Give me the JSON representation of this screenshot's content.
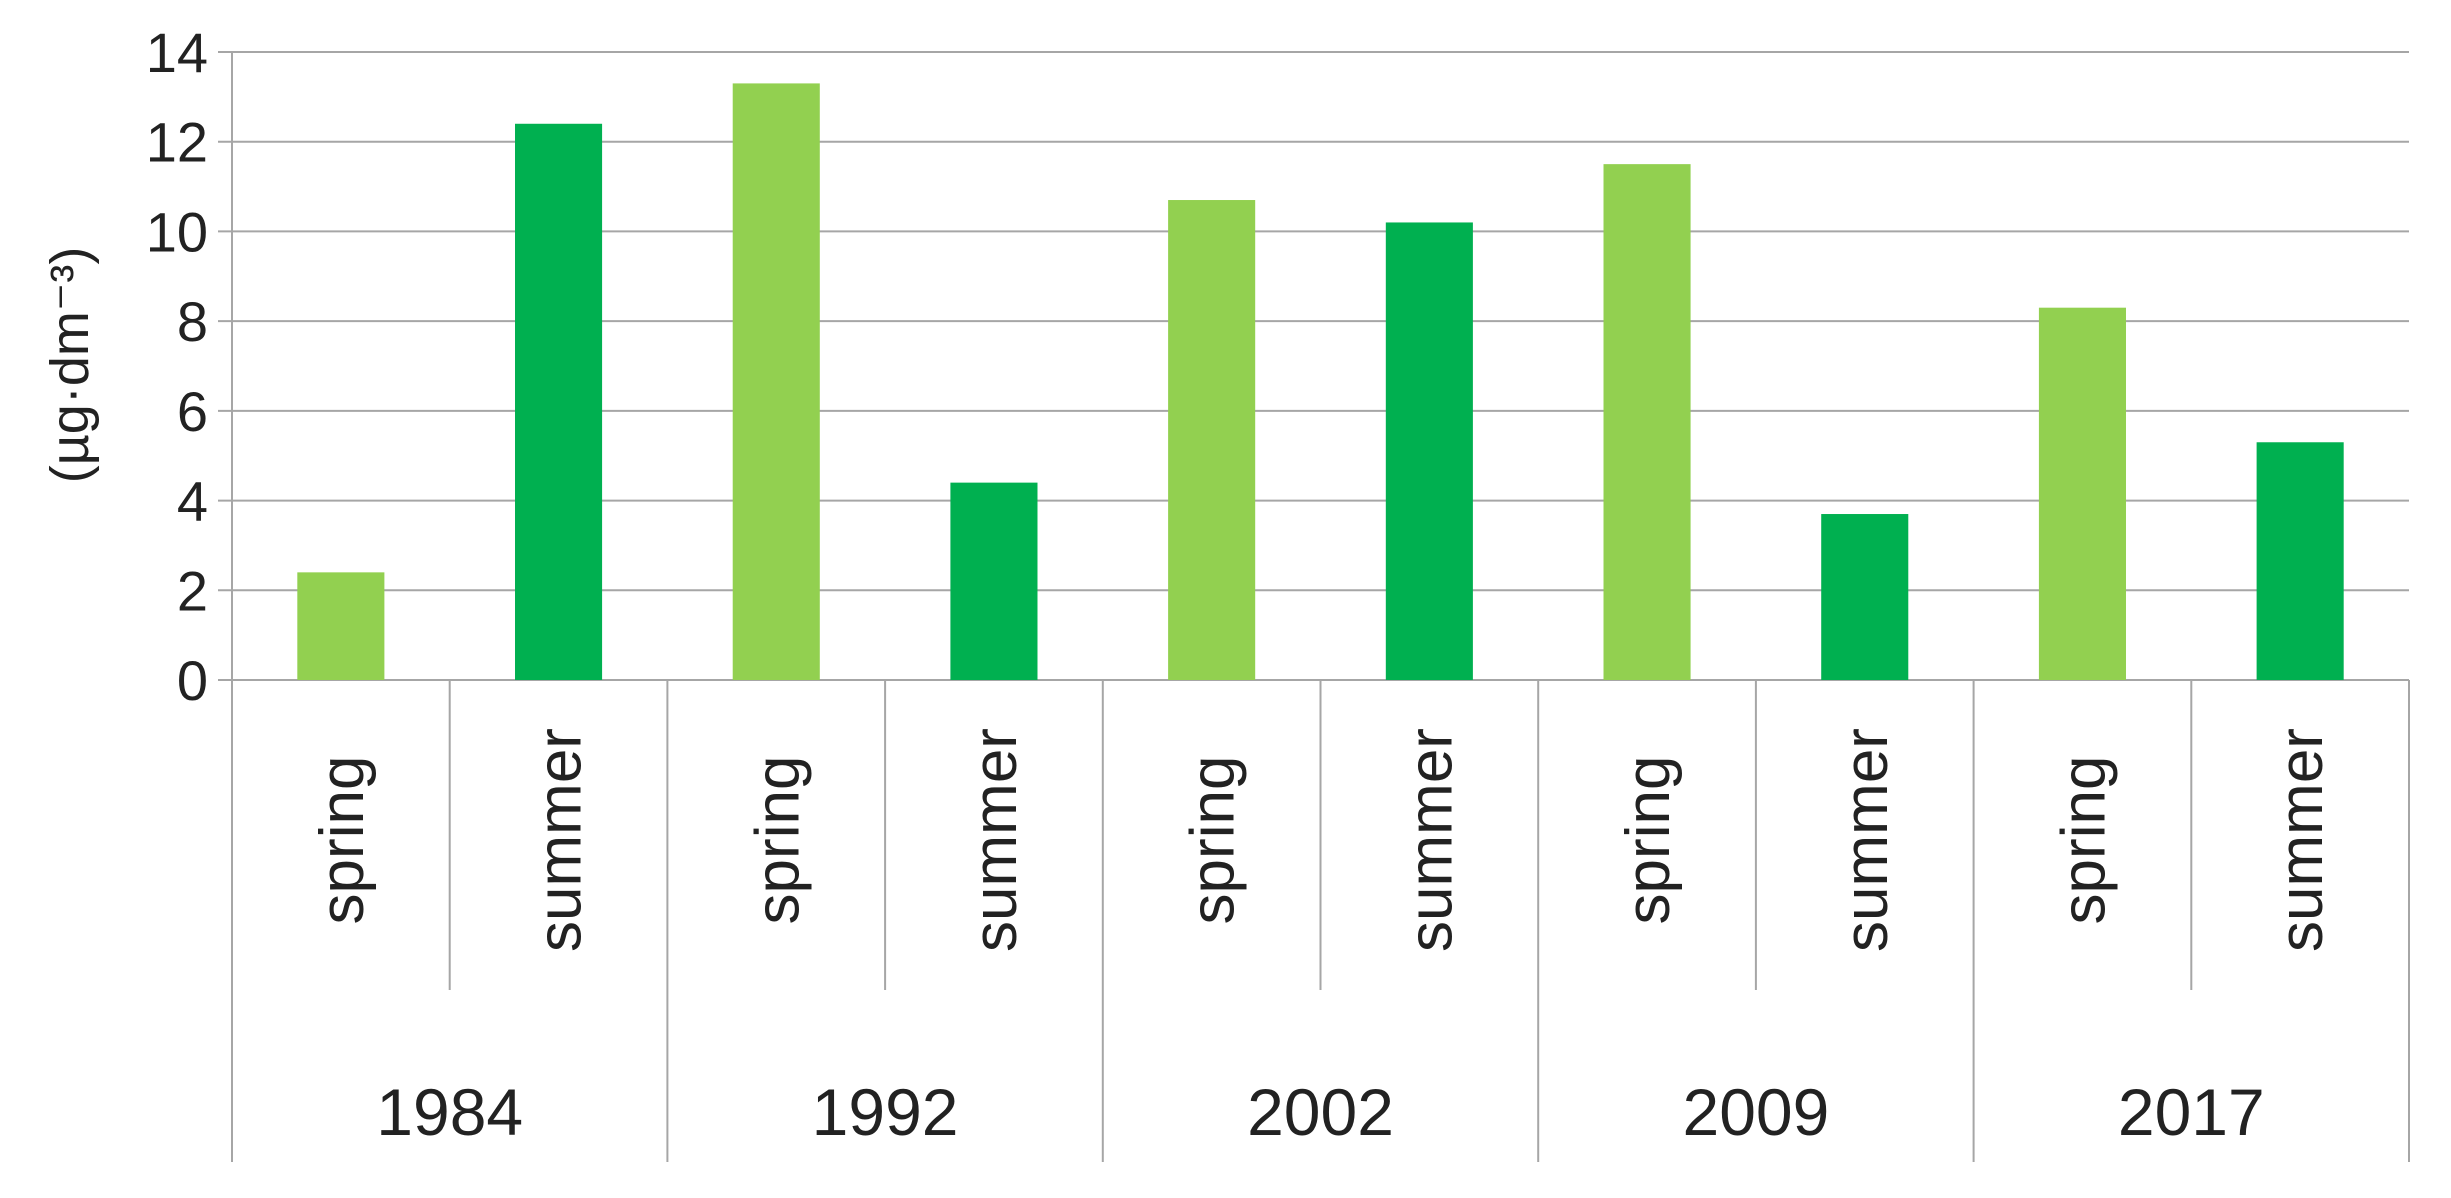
{
  "chart_data": {
    "type": "bar",
    "ylabel": "(µg·dm⁻³)",
    "ylim": [
      0,
      14
    ],
    "yticks": [
      0,
      2,
      4,
      6,
      8,
      10,
      12,
      14
    ],
    "grid": true,
    "groups": [
      "1984",
      "1992",
      "2002",
      "2009",
      "2017"
    ],
    "seasons": [
      "spring",
      "summer"
    ],
    "bars": [
      {
        "group": "1984",
        "season": "spring",
        "value": 2.4
      },
      {
        "group": "1984",
        "season": "summer",
        "value": 12.4
      },
      {
        "group": "1992",
        "season": "spring",
        "value": 13.3
      },
      {
        "group": "1992",
        "season": "summer",
        "value": 4.4
      },
      {
        "group": "2002",
        "season": "spring",
        "value": 10.7
      },
      {
        "group": "2002",
        "season": "summer",
        "value": 10.2
      },
      {
        "group": "2009",
        "season": "spring",
        "value": 11.5
      },
      {
        "group": "2009",
        "season": "summer",
        "value": 3.7
      },
      {
        "group": "2017",
        "season": "spring",
        "value": 8.3
      },
      {
        "group": "2017",
        "season": "summer",
        "value": 5.3
      }
    ],
    "colors": {
      "spring": "#92d050",
      "summer": "#00b050"
    }
  }
}
